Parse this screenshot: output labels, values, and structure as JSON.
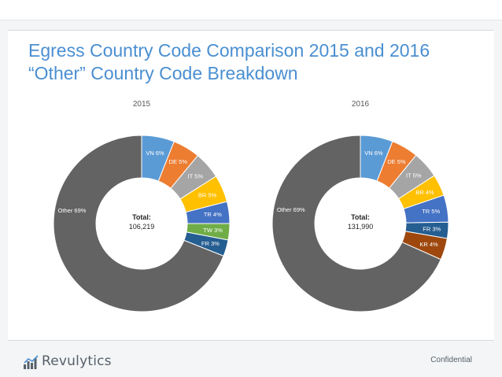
{
  "title_line1": "Egress Country Code Comparison 2015 and 2016",
  "title_line2": "“Other” Country Code Breakdown",
  "logo_text": "Revulytics",
  "footer_text": "Confidential",
  "chart_data": [
    {
      "type": "pie",
      "style": "donut",
      "title": "2015",
      "center_label": "Total:",
      "center_value": "106,219",
      "slices": [
        {
          "name": "VN",
          "value": 6,
          "label": "VN 6%",
          "color": "#5b9bd5",
          "label_color": "#ffffff"
        },
        {
          "name": "DE",
          "value": 5,
          "label": "DE 5%",
          "color": "#ed7d31",
          "label_color": "#ffffff"
        },
        {
          "name": "IT",
          "value": 5,
          "label": "IT 5%",
          "color": "#a5a5a5",
          "label_color": "#ffffff"
        },
        {
          "name": "BR",
          "value": 5,
          "label": "BR 5%",
          "color": "#ffc000",
          "label_color": "#ffffff"
        },
        {
          "name": "TR",
          "value": 4,
          "label": "TR 4%",
          "color": "#4472c4",
          "label_color": "#ffffff"
        },
        {
          "name": "TW",
          "value": 3,
          "label": "TW 3%",
          "color": "#70ad47",
          "label_color": "#ffffff"
        },
        {
          "name": "FR",
          "value": 3,
          "label": "FR 3%",
          "color": "#255e91",
          "label_color": "#ffffff"
        },
        {
          "name": "Other",
          "value": 69,
          "label": "Other 69%",
          "color": "#636363",
          "label_color": "#ffffff"
        }
      ]
    },
    {
      "type": "pie",
      "style": "donut",
      "title": "2016",
      "center_label": "Total:",
      "center_value": "131,990",
      "slices": [
        {
          "name": "VN",
          "value": 6,
          "label": "VN 6%",
          "color": "#5b9bd5",
          "label_color": "#ffffff"
        },
        {
          "name": "DE",
          "value": 5,
          "label": "DE 5%",
          "color": "#ed7d31",
          "label_color": "#ffffff"
        },
        {
          "name": "IT",
          "value": 5,
          "label": "IT 5%",
          "color": "#a5a5a5",
          "label_color": "#ffffff"
        },
        {
          "name": "BR",
          "value": 4,
          "label": "BR 4%",
          "color": "#ffc000",
          "label_color": "#ffffff"
        },
        {
          "name": "TR",
          "value": 5,
          "label": "TR 5%",
          "color": "#4472c4",
          "label_color": "#ffffff"
        },
        {
          "name": "FR",
          "value": 3,
          "label": "FR 3%",
          "color": "#255e91",
          "label_color": "#ffffff"
        },
        {
          "name": "KR",
          "value": 4,
          "label": "KR 4%",
          "color": "#9e480e",
          "label_color": "#ffffff"
        },
        {
          "name": "Other",
          "value": 69,
          "label": "Other 69%",
          "color": "#636363",
          "label_color": "#ffffff"
        }
      ]
    }
  ]
}
